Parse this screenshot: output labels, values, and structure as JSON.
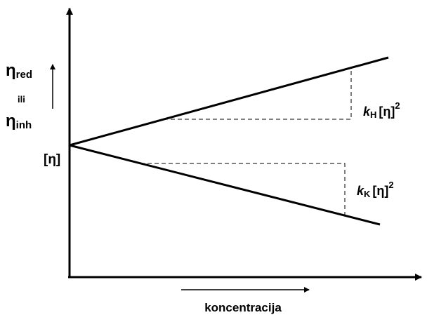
{
  "y_axis_label": {
    "symbol_top": "η",
    "subscript_top": "red",
    "connector": "ili",
    "symbol_bottom": "η",
    "subscript_bottom": "inh"
  },
  "intercept_label": "[η]",
  "upper_annotation": {
    "k": "k",
    "subscript": "H",
    "term": "[η]",
    "exponent": "2"
  },
  "lower_annotation": {
    "k": "k",
    "subscript": "K",
    "term": "[η]",
    "exponent": "2"
  },
  "x_axis_label": "koncentracija"
}
